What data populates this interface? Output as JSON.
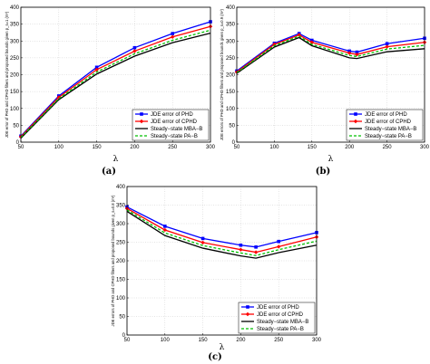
{
  "chart_data": [
    {
      "type": "line",
      "panel_label": "(a)",
      "xlabel": "λ",
      "ylabel": "JDE error of PHD and CPHD filters and proposed bounds given p_s=1 (m²)",
      "x": [
        50,
        100,
        150,
        200,
        250,
        300
      ],
      "xlim": [
        50,
        300
      ],
      "ylim": [
        0,
        400
      ],
      "xticks": [
        "50",
        "100",
        "150",
        "200",
        "250",
        "300"
      ],
      "yticks": [
        "0",
        "50",
        "100",
        "150",
        "200",
        "250",
        "300",
        "350",
        "400"
      ],
      "grid": true,
      "legend_position": "bottom-right",
      "series": [
        {
          "name": "JDE error of PHD",
          "color": "#0000ff",
          "marker": "square",
          "dash": "solid",
          "values": [
            18,
            137,
            222,
            280,
            322,
            357
          ]
        },
        {
          "name": "JDE error of CPHD",
          "color": "#ff0000",
          "marker": "diamond",
          "dash": "solid",
          "values": [
            16,
            133,
            215,
            270,
            312,
            343
          ]
        },
        {
          "name": "Steady−state MBA−B",
          "color": "#000000",
          "marker": "none",
          "dash": "solid",
          "values": [
            12,
            126,
            202,
            255,
            295,
            323
          ]
        },
        {
          "name": "Steady−state PA−B",
          "color": "#00c000",
          "marker": "none",
          "dash": "dashed",
          "values": [
            14,
            129,
            208,
            262,
            302,
            332
          ]
        }
      ]
    },
    {
      "type": "line",
      "panel_label": "(b)",
      "xlabel": "λ",
      "ylabel": "JDE errors of PHD and CPHD filters and proposed bounds given p_s=0.9 (m²)",
      "x": [
        50,
        100,
        133,
        150,
        200,
        210,
        250,
        300
      ],
      "xlim": [
        50,
        300
      ],
      "ylim": [
        0,
        400
      ],
      "xticks": [
        "50",
        "100",
        "150",
        "200",
        "250",
        "300"
      ],
      "yticks": [
        "0",
        "50",
        "100",
        "150",
        "200",
        "250",
        "300",
        "350",
        "400"
      ],
      "grid": true,
      "legend_position": "bottom-right",
      "series": [
        {
          "name": "JDE error of PHD",
          "color": "#0000ff",
          "marker": "square",
          "dash": "solid",
          "values": [
            211,
            293,
            322,
            302,
            270,
            267,
            292,
            308
          ]
        },
        {
          "name": "JDE error of CPHD",
          "color": "#ff0000",
          "marker": "diamond",
          "dash": "solid",
          "values": [
            208,
            290,
            318,
            296,
            264,
            260,
            283,
            296
          ]
        },
        {
          "name": "Steady−state MBA−B",
          "color": "#000000",
          "marker": "none",
          "dash": "solid",
          "values": [
            204,
            282,
            310,
            286,
            250,
            248,
            268,
            277
          ]
        },
        {
          "name": "Steady−state PA−B",
          "color": "#00c000",
          "marker": "none",
          "dash": "dashed",
          "values": [
            206,
            286,
            314,
            290,
            257,
            254,
            276,
            287
          ]
        }
      ]
    },
    {
      "type": "line",
      "panel_label": "(c)",
      "xlabel": "λ",
      "ylabel": "JDE errors of PHD and CPHD filters and proposed bounds given p_s=0.8 (m²)",
      "x": [
        50,
        100,
        150,
        200,
        220,
        250,
        300
      ],
      "xlim": [
        50,
        300
      ],
      "ylim": [
        0,
        400
      ],
      "xticks": [
        "50",
        "100",
        "150",
        "200",
        "250",
        "300"
      ],
      "yticks": [
        "0",
        "50",
        "100",
        "150",
        "200",
        "250",
        "300",
        "350",
        "400"
      ],
      "grid": true,
      "legend_position": "bottom-right",
      "series": [
        {
          "name": "JDE error of PHD",
          "color": "#0000ff",
          "marker": "square",
          "dash": "solid",
          "values": [
            345,
            293,
            260,
            242,
            237,
            252,
            276
          ]
        },
        {
          "name": "JDE error of CPHD",
          "color": "#ff0000",
          "marker": "diamond",
          "dash": "solid",
          "values": [
            341,
            283,
            249,
            230,
            223,
            238,
            264
          ]
        },
        {
          "name": "Steady−state MBA−B",
          "color": "#000000",
          "marker": "none",
          "dash": "solid",
          "values": [
            333,
            268,
            234,
            213,
            207,
            222,
            242
          ]
        },
        {
          "name": "Steady−state PA−B",
          "color": "#00c000",
          "marker": "none",
          "dash": "dashed",
          "values": [
            337,
            275,
            241,
            221,
            214,
            230,
            253
          ]
        }
      ]
    }
  ]
}
